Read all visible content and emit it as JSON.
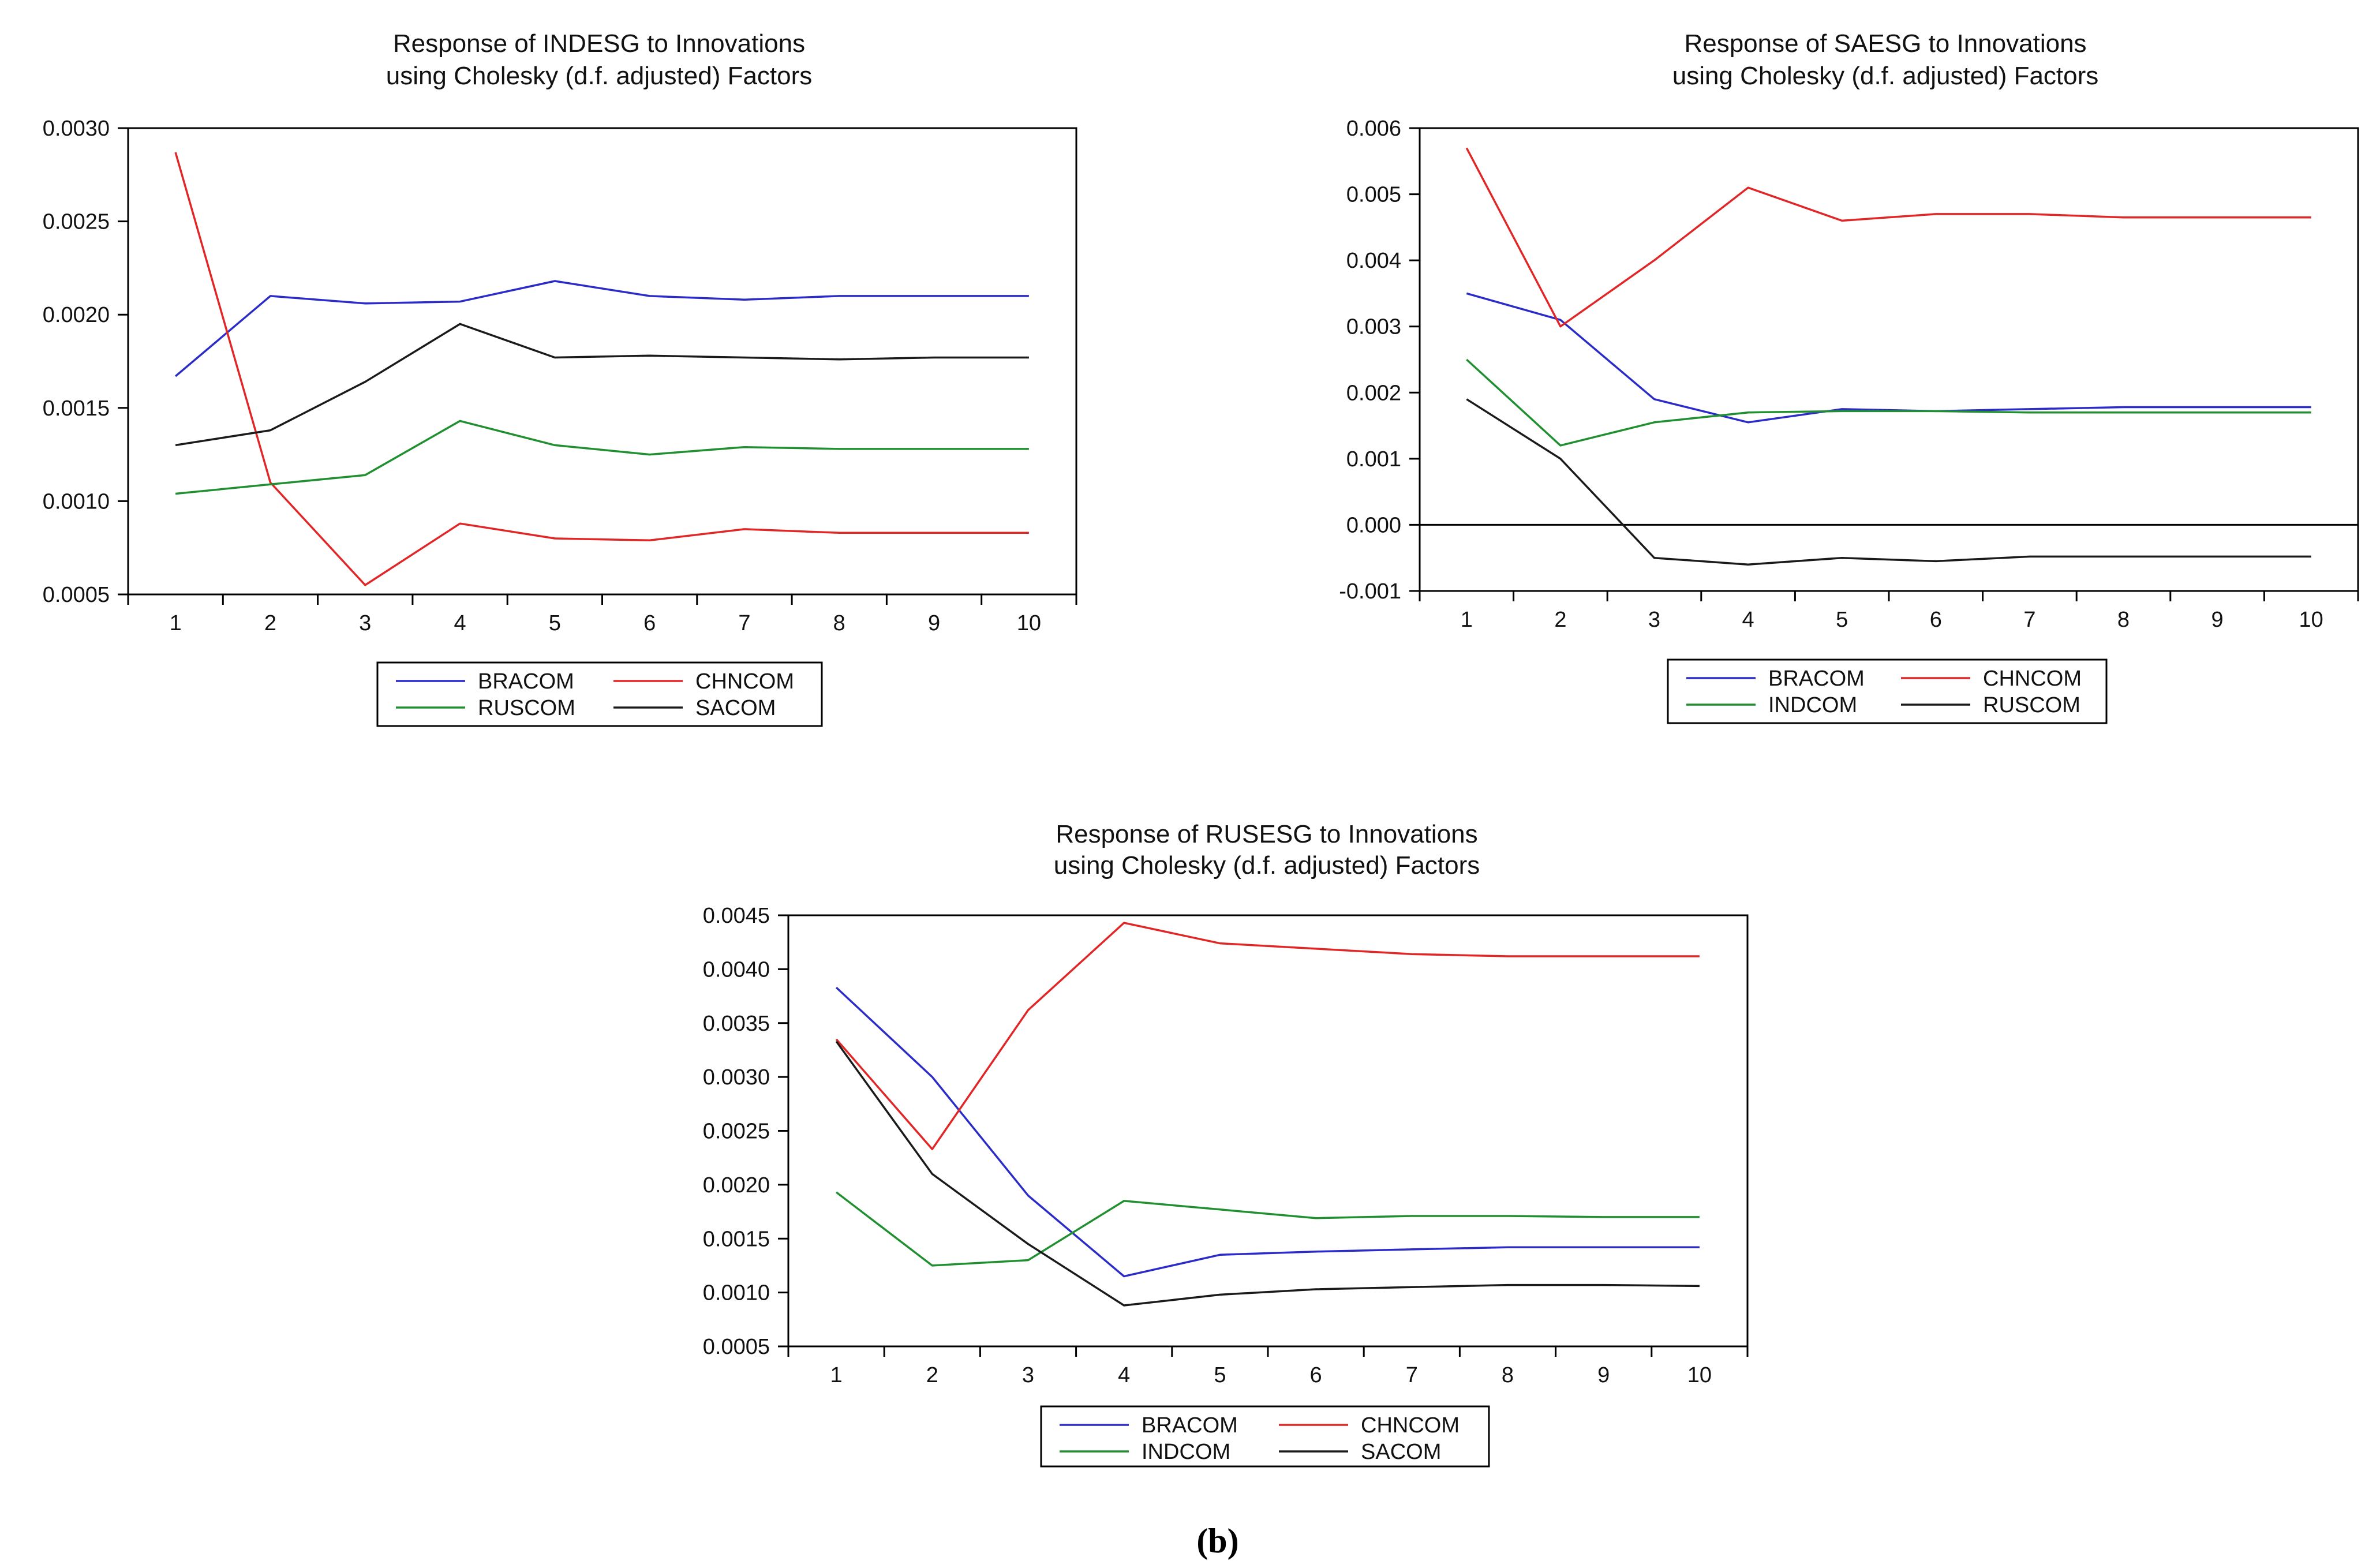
{
  "figure_caption": "(b)",
  "colors": {
    "BRACOM": "#2b2bc8",
    "CHNCOM": "#e02626",
    "RUSCOM": "#1f8f2f",
    "INDCOM": "#1f8f2f",
    "SACOM": "#1a1a1a",
    "RUSCOM_black": "#1a1a1a",
    "axis": "#000000"
  },
  "chart_data": [
    {
      "id": "indesg",
      "type": "line",
      "title": [
        "Response of INDESG to Innovations",
        "using Cholesky (d.f. adjusted) Factors"
      ],
      "xlabel": "",
      "ylabel": "",
      "x": [
        1,
        2,
        3,
        4,
        5,
        6,
        7,
        8,
        9,
        10
      ],
      "ylim": [
        0.0005,
        0.003
      ],
      "yticks": [
        0.0005,
        0.001,
        0.0015,
        0.002,
        0.0025,
        0.003
      ],
      "ytick_labels": [
        "0.0005",
        "0.0010",
        "0.0015",
        "0.0020",
        "0.0025",
        "0.0030"
      ],
      "zero_line": false,
      "legend": "bottom-center",
      "series": [
        {
          "name": "BRACOM",
          "color_key": "BRACOM",
          "values": [
            0.00167,
            0.0021,
            0.00206,
            0.00207,
            0.00218,
            0.0021,
            0.00208,
            0.0021,
            0.0021,
            0.0021
          ]
        },
        {
          "name": "CHNCOM",
          "color_key": "CHNCOM",
          "values": [
            0.00287,
            0.0011,
            0.00055,
            0.00088,
            0.0008,
            0.00079,
            0.00085,
            0.00083,
            0.00083,
            0.00083
          ]
        },
        {
          "name": "RUSCOM",
          "color_key": "RUSCOM",
          "values": [
            0.00104,
            0.00109,
            0.00114,
            0.00143,
            0.0013,
            0.00125,
            0.00129,
            0.00128,
            0.00128,
            0.00128
          ]
        },
        {
          "name": "SACOM",
          "color_key": "SACOM",
          "values": [
            0.0013,
            0.00138,
            0.00164,
            0.00195,
            0.00177,
            0.00178,
            0.00177,
            0.00176,
            0.00177,
            0.00177
          ]
        }
      ]
    },
    {
      "id": "saesg",
      "type": "line",
      "title": [
        "Response of SAESG to Innovations",
        "using Cholesky (d.f. adjusted) Factors"
      ],
      "xlabel": "",
      "ylabel": "",
      "x": [
        1,
        2,
        3,
        4,
        5,
        6,
        7,
        8,
        9,
        10
      ],
      "ylim": [
        -0.001,
        0.006
      ],
      "yticks": [
        -0.001,
        0.0,
        0.001,
        0.002,
        0.003,
        0.004,
        0.005,
        0.006
      ],
      "ytick_labels": [
        "-0.001",
        "0.000",
        "0.001",
        "0.002",
        "0.003",
        "0.004",
        "0.005",
        "0.006"
      ],
      "zero_line": true,
      "legend": "bottom-center",
      "series": [
        {
          "name": "BRACOM",
          "color_key": "BRACOM",
          "values": [
            0.0035,
            0.0031,
            0.0019,
            0.00155,
            0.00175,
            0.00172,
            0.00175,
            0.00178,
            0.00178,
            0.00178
          ]
        },
        {
          "name": "CHNCOM",
          "color_key": "CHNCOM",
          "values": [
            0.0057,
            0.003,
            0.004,
            0.0051,
            0.0046,
            0.0047,
            0.0047,
            0.00465,
            0.00465,
            0.00465
          ]
        },
        {
          "name": "INDCOM",
          "color_key": "INDCOM",
          "values": [
            0.0025,
            0.0012,
            0.00155,
            0.0017,
            0.00172,
            0.00172,
            0.0017,
            0.0017,
            0.0017,
            0.0017
          ]
        },
        {
          "name": "RUSCOM",
          "color_key": "RUSCOM_black",
          "values": [
            0.0019,
            0.001,
            -0.0005,
            -0.0006,
            -0.0005,
            -0.00055,
            -0.00048,
            -0.00048,
            -0.00048,
            -0.00048
          ]
        }
      ]
    },
    {
      "id": "rusesg",
      "type": "line",
      "title": [
        "Response of RUSESG to Innovations",
        "using Cholesky (d.f. adjusted) Factors"
      ],
      "xlabel": "",
      "ylabel": "",
      "x": [
        1,
        2,
        3,
        4,
        5,
        6,
        7,
        8,
        9,
        10
      ],
      "ylim": [
        0.0005,
        0.0045
      ],
      "yticks": [
        0.0005,
        0.001,
        0.0015,
        0.002,
        0.0025,
        0.003,
        0.0035,
        0.004,
        0.0045
      ],
      "ytick_labels": [
        "0.0005",
        "0.0010",
        "0.0015",
        "0.0020",
        "0.0025",
        "0.0030",
        "0.0035",
        "0.0040",
        "0.0045"
      ],
      "zero_line": false,
      "legend": "bottom-center",
      "series": [
        {
          "name": "BRACOM",
          "color_key": "BRACOM",
          "values": [
            0.00383,
            0.003,
            0.0019,
            0.00115,
            0.00135,
            0.00138,
            0.0014,
            0.00142,
            0.00142,
            0.00142
          ]
        },
        {
          "name": "CHNCOM",
          "color_key": "CHNCOM",
          "values": [
            0.00335,
            0.00233,
            0.00362,
            0.00443,
            0.00424,
            0.00419,
            0.00414,
            0.00412,
            0.00412,
            0.00412
          ]
        },
        {
          "name": "INDCOM",
          "color_key": "INDCOM",
          "values": [
            0.00193,
            0.00125,
            0.0013,
            0.00185,
            0.00177,
            0.00169,
            0.00171,
            0.00171,
            0.0017,
            0.0017
          ]
        },
        {
          "name": "SACOM",
          "color_key": "SACOM",
          "values": [
            0.00333,
            0.0021,
            0.00145,
            0.00088,
            0.00098,
            0.00103,
            0.00105,
            0.00107,
            0.00107,
            0.00106
          ]
        }
      ]
    }
  ]
}
